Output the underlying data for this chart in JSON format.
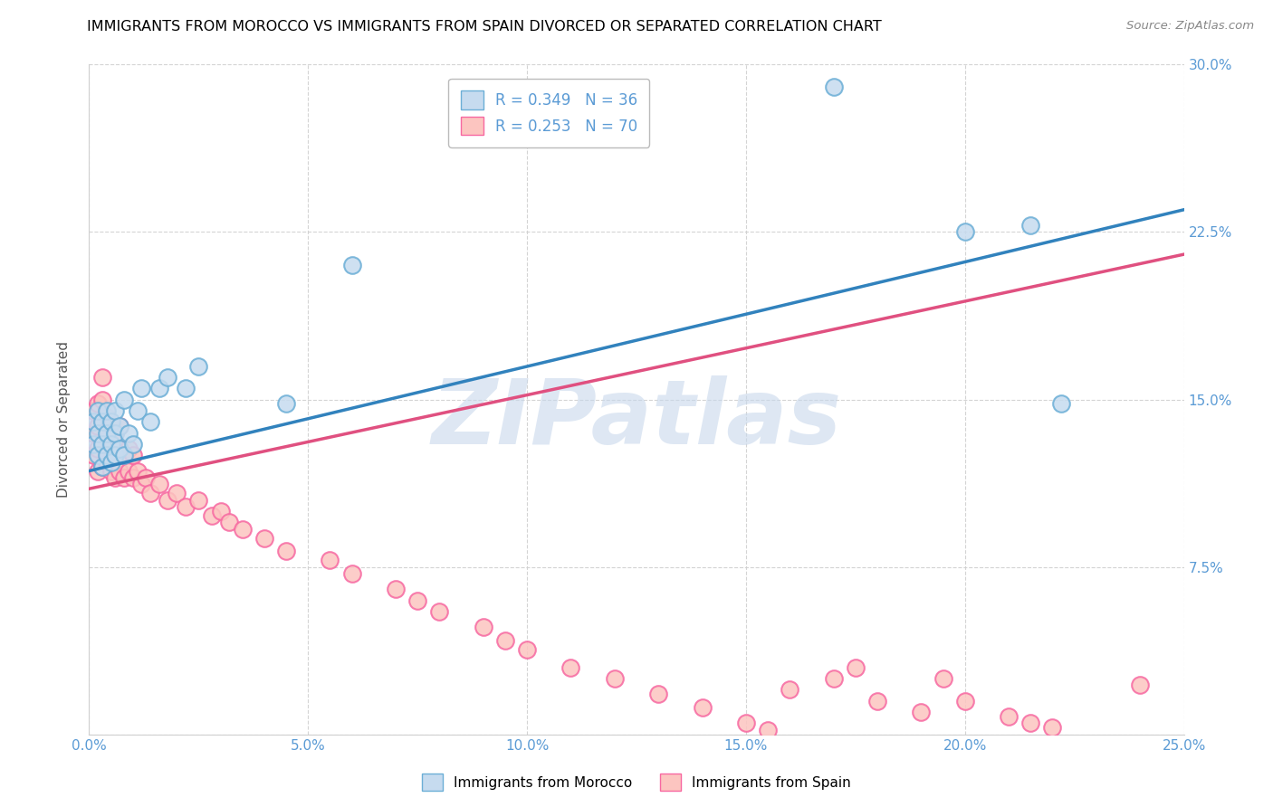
{
  "title": "IMMIGRANTS FROM MOROCCO VS IMMIGRANTS FROM SPAIN DIVORCED OR SEPARATED CORRELATION CHART",
  "source": "Source: ZipAtlas.com",
  "ylabel": "Divorced or Separated",
  "legend_label_1": "Immigrants from Morocco",
  "legend_label_2": "Immigrants from Spain",
  "r1": 0.349,
  "n1": 36,
  "r2": 0.253,
  "n2": 70,
  "color1_face": "#c6dbef",
  "color1_edge": "#6baed6",
  "color2_face": "#fcc5c0",
  "color2_edge": "#f768a1",
  "line_color1": "#3182bd",
  "line_color2": "#e05080",
  "xlim": [
    0.0,
    0.25
  ],
  "ylim": [
    0.0,
    0.3
  ],
  "xticks": [
    0.0,
    0.05,
    0.1,
    0.15,
    0.2,
    0.25
  ],
  "yticks": [
    0.0,
    0.075,
    0.15,
    0.225,
    0.3
  ],
  "xtick_labels": [
    "0.0%",
    "5.0%",
    "10.0%",
    "15.0%",
    "20.0%",
    "25.0%"
  ],
  "ytick_labels": [
    "",
    "7.5%",
    "15.0%",
    "22.5%",
    "30.0%"
  ],
  "watermark": "ZIPatlas",
  "tick_color": "#5b9bd5",
  "grid_color": "#d0d0d0",
  "title_fontsize": 12,
  "tick_fontsize": 11,
  "source_fontsize": 10,
  "morocco_x": [
    0.001,
    0.001,
    0.002,
    0.002,
    0.002,
    0.003,
    0.003,
    0.003,
    0.004,
    0.004,
    0.004,
    0.005,
    0.005,
    0.005,
    0.006,
    0.006,
    0.006,
    0.007,
    0.007,
    0.008,
    0.008,
    0.009,
    0.01,
    0.011,
    0.012,
    0.014,
    0.016,
    0.018,
    0.022,
    0.025,
    0.045,
    0.06,
    0.17,
    0.2,
    0.215,
    0.222
  ],
  "morocco_y": [
    0.13,
    0.14,
    0.125,
    0.135,
    0.145,
    0.12,
    0.13,
    0.14,
    0.125,
    0.135,
    0.145,
    0.122,
    0.13,
    0.14,
    0.125,
    0.135,
    0.145,
    0.128,
    0.138,
    0.125,
    0.15,
    0.135,
    0.13,
    0.145,
    0.155,
    0.14,
    0.155,
    0.16,
    0.155,
    0.165,
    0.148,
    0.21,
    0.29,
    0.225,
    0.228,
    0.148
  ],
  "spain_x": [
    0.001,
    0.001,
    0.001,
    0.002,
    0.002,
    0.002,
    0.002,
    0.003,
    0.003,
    0.003,
    0.003,
    0.003,
    0.004,
    0.004,
    0.004,
    0.005,
    0.005,
    0.005,
    0.006,
    0.006,
    0.006,
    0.007,
    0.007,
    0.007,
    0.008,
    0.008,
    0.009,
    0.009,
    0.01,
    0.01,
    0.011,
    0.012,
    0.013,
    0.014,
    0.016,
    0.018,
    0.02,
    0.022,
    0.025,
    0.028,
    0.03,
    0.032,
    0.035,
    0.04,
    0.045,
    0.055,
    0.06,
    0.07,
    0.075,
    0.08,
    0.09,
    0.095,
    0.1,
    0.11,
    0.12,
    0.13,
    0.14,
    0.15,
    0.155,
    0.16,
    0.17,
    0.175,
    0.18,
    0.19,
    0.195,
    0.2,
    0.21,
    0.215,
    0.22,
    0.24
  ],
  "spain_y": [
    0.125,
    0.135,
    0.145,
    0.118,
    0.128,
    0.138,
    0.148,
    0.12,
    0.13,
    0.14,
    0.15,
    0.16,
    0.122,
    0.132,
    0.142,
    0.118,
    0.128,
    0.138,
    0.115,
    0.125,
    0.135,
    0.118,
    0.128,
    0.138,
    0.115,
    0.125,
    0.118,
    0.128,
    0.115,
    0.125,
    0.118,
    0.112,
    0.115,
    0.108,
    0.112,
    0.105,
    0.108,
    0.102,
    0.105,
    0.098,
    0.1,
    0.095,
    0.092,
    0.088,
    0.082,
    0.078,
    0.072,
    0.065,
    0.06,
    0.055,
    0.048,
    0.042,
    0.038,
    0.03,
    0.025,
    0.018,
    0.012,
    0.005,
    0.002,
    0.02,
    0.025,
    0.03,
    0.015,
    0.01,
    0.025,
    0.015,
    0.008,
    0.005,
    0.003,
    0.022
  ],
  "trend1_x": [
    0.0,
    0.25
  ],
  "trend1_y": [
    0.118,
    0.235
  ],
  "trend2_x": [
    0.0,
    0.25
  ],
  "trend2_y": [
    0.11,
    0.215
  ]
}
